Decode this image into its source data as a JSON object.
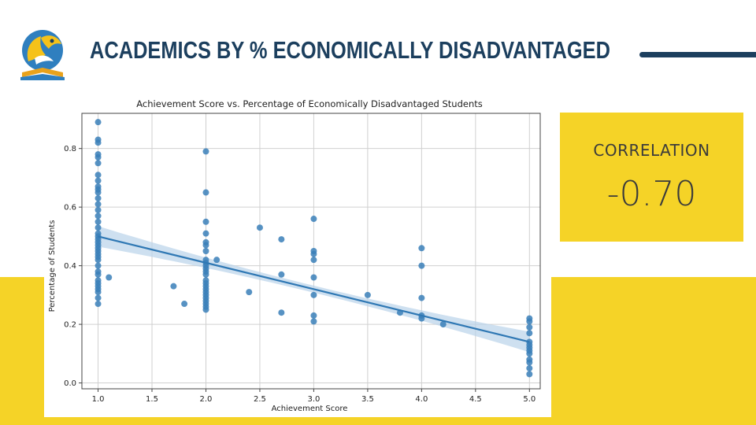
{
  "header": {
    "title": "ACADEMICS BY % ECONOMICALLY DISADVANTAGED"
  },
  "colors": {
    "accent_yellow": "#f5d327",
    "navy": "#1c3f5e",
    "point_blue": "#3a7fb8",
    "ci_band": "#b9d3ea"
  },
  "correlation": {
    "label": "CORRELATION",
    "value": "-0.70"
  },
  "chart_data": {
    "type": "scatter",
    "title": "Achievement Score vs. Percentage of Economically Disadvantaged Students",
    "xlabel": "Achievement Score",
    "ylabel": "Percentage of Students",
    "xlim": [
      0.85,
      5.1
    ],
    "ylim": [
      -0.02,
      0.92
    ],
    "xticks": [
      1.0,
      1.5,
      2.0,
      2.5,
      3.0,
      3.5,
      4.0,
      4.5,
      5.0
    ],
    "yticks": [
      0.0,
      0.2,
      0.4,
      0.6,
      0.8
    ],
    "grid": true,
    "points": [
      [
        1.0,
        0.89
      ],
      [
        1.0,
        0.83
      ],
      [
        1.0,
        0.82
      ],
      [
        1.0,
        0.78
      ],
      [
        1.0,
        0.77
      ],
      [
        1.0,
        0.75
      ],
      [
        1.0,
        0.71
      ],
      [
        1.0,
        0.69
      ],
      [
        1.0,
        0.67
      ],
      [
        1.0,
        0.66
      ],
      [
        1.0,
        0.65
      ],
      [
        1.0,
        0.63
      ],
      [
        1.0,
        0.61
      ],
      [
        1.0,
        0.59
      ],
      [
        1.0,
        0.57
      ],
      [
        1.0,
        0.55
      ],
      [
        1.0,
        0.53
      ],
      [
        1.0,
        0.51
      ],
      [
        1.0,
        0.5
      ],
      [
        1.0,
        0.49
      ],
      [
        1.0,
        0.48
      ],
      [
        1.0,
        0.47
      ],
      [
        1.0,
        0.46
      ],
      [
        1.0,
        0.45
      ],
      [
        1.0,
        0.44
      ],
      [
        1.0,
        0.43
      ],
      [
        1.0,
        0.42
      ],
      [
        1.0,
        0.4
      ],
      [
        1.0,
        0.38
      ],
      [
        1.0,
        0.37
      ],
      [
        1.0,
        0.35
      ],
      [
        1.0,
        0.34
      ],
      [
        1.0,
        0.33
      ],
      [
        1.0,
        0.32
      ],
      [
        1.0,
        0.31
      ],
      [
        1.0,
        0.29
      ],
      [
        1.0,
        0.27
      ],
      [
        1.1,
        0.36
      ],
      [
        1.7,
        0.33
      ],
      [
        1.8,
        0.27
      ],
      [
        2.0,
        0.79
      ],
      [
        2.0,
        0.65
      ],
      [
        2.0,
        0.55
      ],
      [
        2.0,
        0.51
      ],
      [
        2.0,
        0.48
      ],
      [
        2.0,
        0.47
      ],
      [
        2.0,
        0.45
      ],
      [
        2.0,
        0.42
      ],
      [
        2.0,
        0.41
      ],
      [
        2.0,
        0.4
      ],
      [
        2.0,
        0.39
      ],
      [
        2.0,
        0.38
      ],
      [
        2.0,
        0.37
      ],
      [
        2.0,
        0.35
      ],
      [
        2.0,
        0.34
      ],
      [
        2.0,
        0.33
      ],
      [
        2.0,
        0.32
      ],
      [
        2.0,
        0.31
      ],
      [
        2.0,
        0.3
      ],
      [
        2.0,
        0.29
      ],
      [
        2.0,
        0.28
      ],
      [
        2.0,
        0.27
      ],
      [
        2.0,
        0.26
      ],
      [
        2.0,
        0.25
      ],
      [
        2.1,
        0.42
      ],
      [
        2.4,
        0.31
      ],
      [
        2.5,
        0.53
      ],
      [
        2.7,
        0.49
      ],
      [
        2.7,
        0.37
      ],
      [
        2.7,
        0.24
      ],
      [
        3.0,
        0.56
      ],
      [
        3.0,
        0.45
      ],
      [
        3.0,
        0.44
      ],
      [
        3.0,
        0.42
      ],
      [
        3.0,
        0.36
      ],
      [
        3.0,
        0.3
      ],
      [
        3.0,
        0.23
      ],
      [
        3.0,
        0.21
      ],
      [
        3.5,
        0.3
      ],
      [
        3.8,
        0.24
      ],
      [
        4.0,
        0.46
      ],
      [
        4.0,
        0.4
      ],
      [
        4.0,
        0.29
      ],
      [
        4.0,
        0.23
      ],
      [
        4.0,
        0.22
      ],
      [
        4.2,
        0.2
      ],
      [
        5.0,
        0.22
      ],
      [
        5.0,
        0.21
      ],
      [
        5.0,
        0.19
      ],
      [
        5.0,
        0.17
      ],
      [
        5.0,
        0.14
      ],
      [
        5.0,
        0.13
      ],
      [
        5.0,
        0.12
      ],
      [
        5.0,
        0.11
      ],
      [
        5.0,
        0.1
      ],
      [
        5.0,
        0.08
      ],
      [
        5.0,
        0.07
      ],
      [
        5.0,
        0.05
      ],
      [
        5.0,
        0.03
      ]
    ],
    "regression": {
      "start": [
        1.0,
        0.5
      ],
      "end": [
        5.0,
        0.14
      ],
      "ci_halfwidth_at_ends": 0.035,
      "ci_halfwidth_at_mid": 0.012
    }
  }
}
